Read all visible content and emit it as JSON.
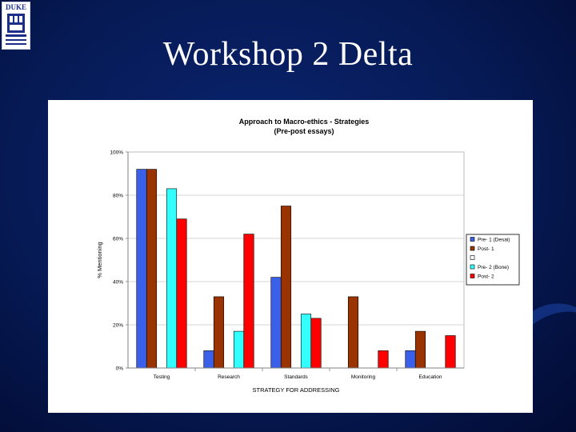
{
  "slide": {
    "title": "Workshop 2 Delta",
    "logo_text": "DUKE"
  },
  "colors": {
    "background": "#061a55",
    "pre1": "#3a5fe8",
    "post1": "#993300",
    "blank": "#ffffff",
    "pre2": "#33ffff",
    "post2": "#ff0000"
  },
  "chart_data": {
    "type": "bar",
    "title": "Approach to Macro-ethics - Strategies",
    "subtitle": "(Pre-post essays)",
    "xlabel": "STRATEGY FOR ADDRESSING",
    "ylabel": "% Mentioning",
    "ylim": [
      0,
      100
    ],
    "yticks": [
      "0%",
      "20%",
      "40%",
      "60%",
      "80%",
      "100%"
    ],
    "grid": true,
    "legend_position": "right",
    "categories": [
      "Testing",
      "Research",
      "Standards",
      "Monitoring",
      "Education"
    ],
    "series": [
      {
        "name": "Pre- 1 (Desai)",
        "color": "#3a5fe8",
        "values": [
          92,
          8,
          42,
          0,
          8
        ]
      },
      {
        "name": "Post- 1",
        "color": "#993300",
        "values": [
          92,
          33,
          75,
          33,
          17
        ]
      },
      {
        "name": "",
        "color": "#ffffff",
        "values": [
          0,
          0,
          0,
          0,
          0
        ]
      },
      {
        "name": "Pre- 2 (Bone)",
        "color": "#33ffff",
        "values": [
          83,
          17,
          25,
          0,
          0
        ]
      },
      {
        "name": "Post- 2",
        "color": "#ff0000",
        "values": [
          69,
          62,
          23,
          8,
          15
        ]
      }
    ]
  }
}
